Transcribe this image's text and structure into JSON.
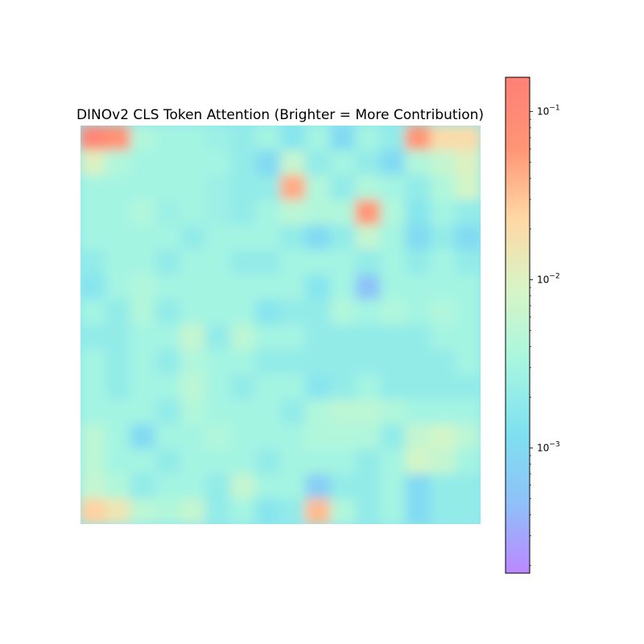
{
  "chart_data": {
    "type": "heatmap",
    "title": "DINOv2 CLS Token Attention (Brighter = More Contribution)",
    "xlabel": "",
    "ylabel": "",
    "grid": false,
    "axes_visible": false,
    "colormap": "rainbow",
    "colormap_stops": [
      "#bb88ff",
      "#8ec1f9",
      "#7fe1f0",
      "#a8f6e0",
      "#d7f5c6",
      "#ffd8a5",
      "#ff9575",
      "#ff8077"
    ],
    "colorbar": {
      "scale": "log",
      "position": "right",
      "range": [
        0.00018,
        0.16
      ],
      "ticks": [
        {
          "value": 0.001,
          "label": "10^-3",
          "base": "10",
          "exp": "−3"
        },
        {
          "value": 0.01,
          "label": "10^-2",
          "base": "10",
          "exp": "−2"
        },
        {
          "value": 0.1,
          "label": "10^-1",
          "base": "10",
          "exp": "−1"
        }
      ]
    },
    "grid_size": [
      16,
      16
    ],
    "values": [
      [
        0.12,
        0.07,
        0.004,
        0.003,
        0.003,
        0.0025,
        0.002,
        0.003,
        0.0015,
        0.003,
        0.001,
        0.003,
        0.002,
        0.06,
        0.02,
        0.02
      ],
      [
        0.01,
        0.004,
        0.003,
        0.003,
        0.003,
        0.003,
        0.002,
        0.001,
        0.006,
        0.002,
        0.003,
        0.002,
        0.001,
        0.004,
        0.006,
        0.01
      ],
      [
        0.003,
        0.003,
        0.003,
        0.003,
        0.003,
        0.0025,
        0.002,
        0.002,
        0.045,
        0.004,
        0.002,
        0.004,
        0.003,
        0.002,
        0.004,
        0.008
      ],
      [
        0.003,
        0.003,
        0.004,
        0.0025,
        0.003,
        0.0025,
        0.002,
        0.003,
        0.005,
        0.004,
        0.004,
        0.06,
        0.004,
        0.0015,
        0.003,
        0.002
      ],
      [
        0.003,
        0.003,
        0.003,
        0.003,
        0.002,
        0.003,
        0.003,
        0.003,
        0.002,
        0.001,
        0.002,
        0.006,
        0.003,
        0.001,
        0.002,
        0.001
      ],
      [
        0.002,
        0.003,
        0.003,
        0.002,
        0.003,
        0.003,
        0.002,
        0.002,
        0.003,
        0.003,
        0.003,
        0.002,
        0.003,
        0.002,
        0.003,
        0.002
      ],
      [
        0.0015,
        0.003,
        0.004,
        0.003,
        0.003,
        0.003,
        0.003,
        0.003,
        0.003,
        0.0015,
        0.003,
        0.0005,
        0.003,
        0.003,
        0.003,
        0.003
      ],
      [
        0.003,
        0.002,
        0.004,
        0.002,
        0.003,
        0.003,
        0.003,
        0.0015,
        0.002,
        0.002,
        0.004,
        0.003,
        0.004,
        0.003,
        0.004,
        0.003
      ],
      [
        0.002,
        0.002,
        0.003,
        0.003,
        0.006,
        0.002,
        0.005,
        0.003,
        0.003,
        0.002,
        0.002,
        0.002,
        0.002,
        0.002,
        0.003,
        0.003
      ],
      [
        0.003,
        0.002,
        0.003,
        0.002,
        0.004,
        0.003,
        0.003,
        0.002,
        0.002,
        0.002,
        0.002,
        0.002,
        0.002,
        0.002,
        0.002,
        0.003
      ],
      [
        0.003,
        0.002,
        0.003,
        0.003,
        0.005,
        0.003,
        0.002,
        0.003,
        0.003,
        0.0015,
        0.002,
        0.003,
        0.002,
        0.002,
        0.002,
        0.002
      ],
      [
        0.003,
        0.003,
        0.003,
        0.002,
        0.004,
        0.003,
        0.003,
        0.003,
        0.002,
        0.004,
        0.005,
        0.005,
        0.004,
        0.003,
        0.003,
        0.003
      ],
      [
        0.005,
        0.003,
        0.001,
        0.003,
        0.003,
        0.004,
        0.003,
        0.003,
        0.003,
        0.004,
        0.004,
        0.004,
        0.002,
        0.006,
        0.008,
        0.005
      ],
      [
        0.005,
        0.003,
        0.003,
        0.002,
        0.003,
        0.003,
        0.003,
        0.002,
        0.003,
        0.003,
        0.003,
        0.002,
        0.003,
        0.008,
        0.006,
        0.003
      ],
      [
        0.006,
        0.004,
        0.002,
        0.003,
        0.003,
        0.002,
        0.006,
        0.003,
        0.003,
        0.0007,
        0.002,
        0.002,
        0.003,
        0.001,
        0.002,
        0.002
      ],
      [
        0.025,
        0.015,
        0.005,
        0.004,
        0.006,
        0.002,
        0.003,
        0.0015,
        0.002,
        0.035,
        0.004,
        0.002,
        0.003,
        0.001,
        0.002,
        0.002
      ]
    ]
  }
}
